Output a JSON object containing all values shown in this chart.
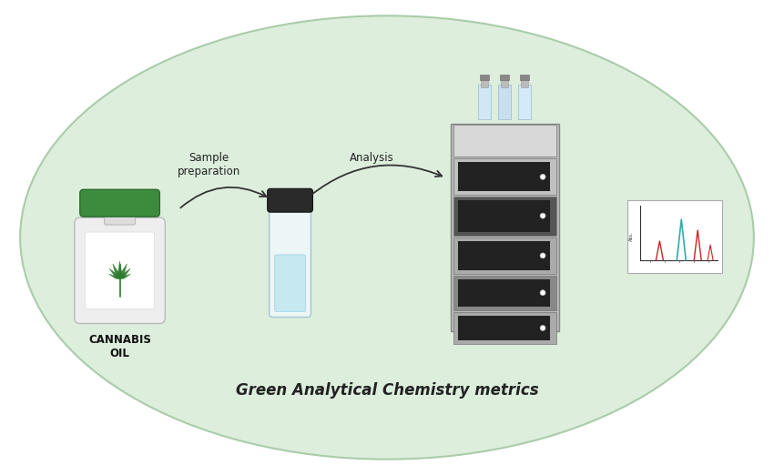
{
  "background_color": "#ffffff",
  "ellipse_color": "#ddeedd",
  "ellipse_border": "#aaccaa",
  "title_text": "Green Analytical Chemistry metrics",
  "title_fontsize": 12,
  "title_fontweight": "bold",
  "title_color": "#222222",
  "label_cannabis": "CANNABIS\nOIL",
  "label_sample": "Sample\npreparation",
  "label_analysis": "Analysis",
  "arrow_color": "#333333",
  "fig_width": 8.5,
  "fig_height": 5.22,
  "dpi": 100
}
